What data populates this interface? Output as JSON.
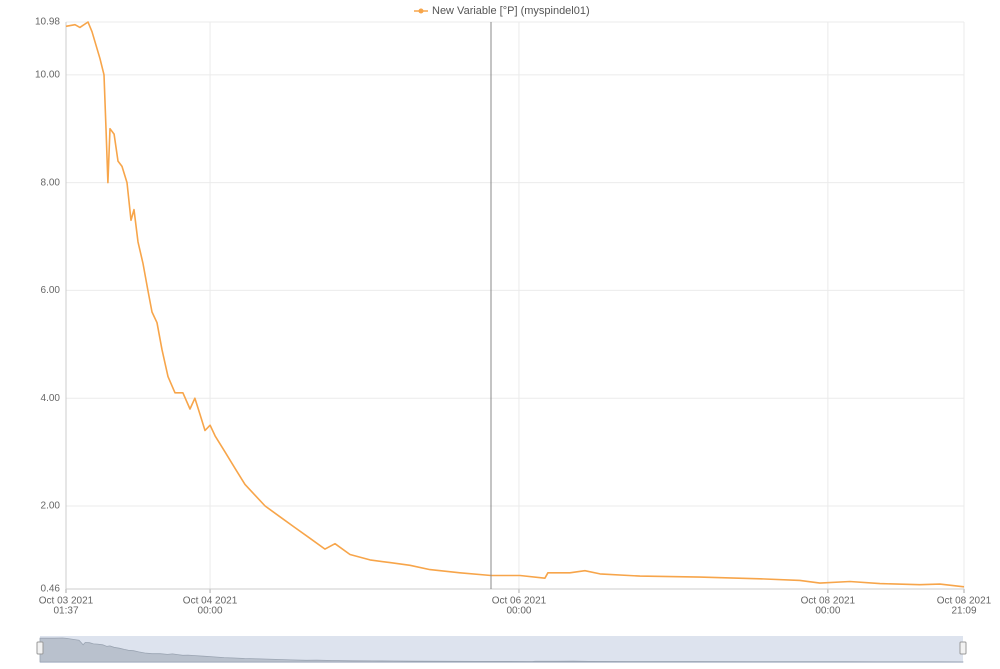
{
  "chart_data": {
    "type": "line",
    "legend": "top",
    "grid": true,
    "x": [
      "2021-10-03 01:37",
      "2021-10-03 03:01",
      "2021-10-03 03:47",
      "2021-10-03 05:02",
      "2021-10-03 05:39",
      "2021-10-03 06:54",
      "2021-10-03 07:31",
      "2021-10-03 07:50",
      "2021-10-03 08:08",
      "2021-10-03 08:27",
      "2021-10-03 09:05",
      "2021-10-03 09:42",
      "2021-10-03 10:19",
      "2021-10-03 11:06",
      "2021-10-03 11:43",
      "2021-10-03 12:11",
      "2021-10-03 12:48",
      "2021-10-03 13:35",
      "2021-10-03 14:21",
      "2021-10-03 14:59",
      "2021-10-03 15:45",
      "2021-10-03 16:32",
      "2021-10-03 17:28",
      "2021-10-03 18:33",
      "2021-10-03 19:47",
      "2021-10-03 20:53",
      "2021-10-03 21:39",
      "2021-10-03 22:26",
      "2021-10-03 23:13",
      "2021-10-04 00:00",
      "2021-10-04 00:47",
      "2021-10-04 02:20",
      "2021-10-04 03:53",
      "2021-10-04 05:26",
      "2021-10-04 06:59",
      "2021-10-04 08:33",
      "2021-10-04 10:52",
      "2021-10-04 13:12",
      "2021-10-04 15:32",
      "2021-10-04 17:52",
      "2021-10-04 19:25",
      "2021-10-04 21:45",
      "2021-10-05 00:51",
      "2021-10-05 03:58",
      "2021-10-05 07:04",
      "2021-10-05 10:10",
      "2021-10-05 14:50",
      "2021-10-05 19:39",
      "2021-10-06 00:10",
      "2021-10-06 04:02",
      "2021-10-06 04:30",
      "2021-10-06 07:55",
      "2021-10-06 10:15",
      "2021-10-06 12:35",
      "2021-10-06 18:48",
      "2021-10-07 04:07",
      "2021-10-07 13:26",
      "2021-10-07 19:39",
      "2021-10-07 22:46",
      "2021-10-08 03:25",
      "2021-10-08 08:05",
      "2021-10-08 14:17",
      "2021-10-08 17:24",
      "2021-10-08 21:09"
    ],
    "series": [
      {
        "name": "New Variable [°P] (myspindel01)",
        "color": "#f7a54a",
        "values": [
          10.9,
          10.93,
          10.88,
          10.98,
          10.8,
          10.3,
          10.0,
          9.0,
          8.0,
          9.0,
          8.9,
          8.4,
          8.3,
          8.0,
          7.3,
          7.5,
          6.9,
          6.5,
          6.0,
          5.6,
          5.4,
          4.9,
          4.4,
          4.1,
          4.1,
          3.8,
          4.0,
          3.7,
          3.4,
          3.5,
          3.3,
          3.0,
          2.7,
          2.4,
          2.2,
          2.0,
          1.8,
          1.6,
          1.4,
          1.2,
          1.3,
          1.1,
          1.0,
          0.95,
          0.9,
          0.82,
          0.76,
          0.71,
          0.71,
          0.66,
          0.76,
          0.76,
          0.8,
          0.74,
          0.7,
          0.68,
          0.65,
          0.62,
          0.57,
          0.6,
          0.56,
          0.54,
          0.55,
          0.5
        ]
      }
    ],
    "xlim": [
      "2021-10-03 01:37",
      "2021-10-08 21:09"
    ],
    "xticks": [
      {
        "value": "2021-10-03 01:37",
        "label": [
          "Oct 03 2021",
          "01:37"
        ]
      },
      {
        "value": "2021-10-04 00:00",
        "label": [
          "Oct 04 2021",
          "00:00"
        ]
      },
      {
        "value": "2021-10-06 00:00",
        "label": [
          "Oct 06 2021",
          "00:00"
        ]
      },
      {
        "value": "2021-10-08 00:00",
        "label": [
          "Oct 08 2021",
          "00:00"
        ]
      },
      {
        "value": "2021-10-08 21:09",
        "label": [
          "Oct 08 2021",
          "21:09"
        ]
      }
    ],
    "ylim": [
      0.46,
      10.98
    ],
    "yticks": [
      0.46,
      {
        "value": 2,
        "label": "2.00"
      },
      {
        "value": 4,
        "label": "4.00"
      },
      {
        "value": 6,
        "label": "6.00"
      },
      {
        "value": 8,
        "label": "8.00"
      },
      {
        "value": 10,
        "label": "10.00"
      },
      10.98
    ]
  }
}
